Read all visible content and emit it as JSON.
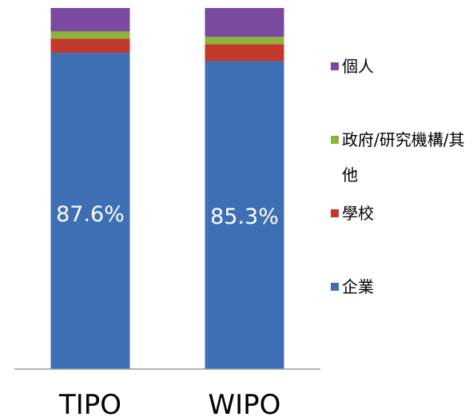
{
  "chart_data": {
    "type": "bar",
    "stacked": true,
    "normalized": true,
    "categories": [
      "TIPO",
      "WIPO"
    ],
    "series": [
      {
        "name": "企業",
        "color": "#3e6fb4",
        "values": [
          87.6,
          85.3
        ],
        "labels": [
          "87.6%",
          "85.3%"
        ]
      },
      {
        "name": "學校",
        "color": "#c0392b",
        "values": [
          3.9,
          4.7
        ]
      },
      {
        "name": "政府/研究機構/其他",
        "color": "#8db33a",
        "values": [
          2.0,
          2.0
        ]
      },
      {
        "name": "個人",
        "color": "#7a4aa0",
        "values": [
          6.5,
          8.0
        ]
      }
    ],
    "ylim": [
      0,
      100
    ],
    "grid": false,
    "legend": "right"
  }
}
